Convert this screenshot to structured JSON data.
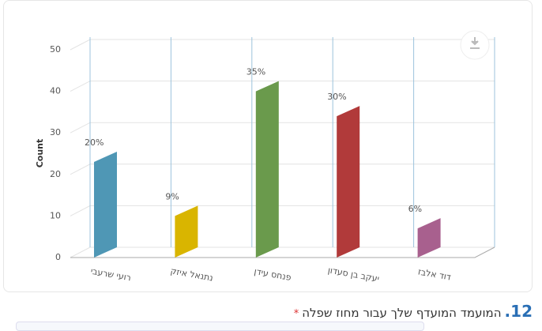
{
  "chart_data": {
    "type": "bar3d",
    "y_label": "Count",
    "categories": [
      "רועי שרעבי",
      "נתנאל איזק",
      "פנחס עידן",
      "יעקב בן סעדון",
      "דוד אלבז"
    ],
    "values": [
      23,
      10,
      40,
      34,
      7
    ],
    "percent_labels": [
      "20%",
      "9%",
      "35%",
      "30%",
      "6%"
    ],
    "colors": [
      "#4f97b5",
      "#d9b500",
      "#6a9a4c",
      "#b13a3a",
      "#a8608e"
    ],
    "ylim": [
      0,
      50
    ],
    "yticks": [
      0,
      10,
      20,
      30,
      40,
      50
    ],
    "grid": true
  },
  "question": {
    "number": "12.",
    "text": "המועמד המועדף שלך עבור מחוז שפלה",
    "required_mark": "*"
  }
}
